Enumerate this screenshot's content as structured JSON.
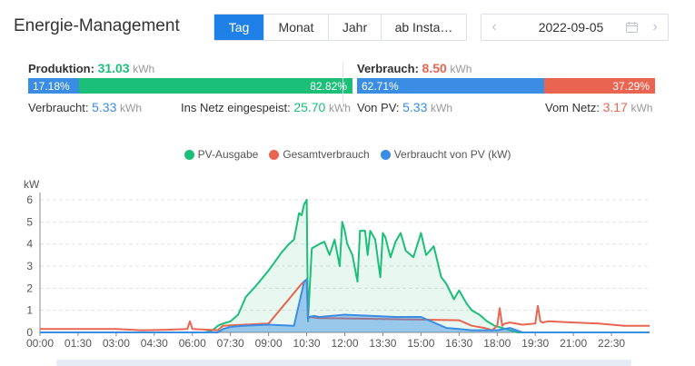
{
  "header": {
    "title": "Energie-Management",
    "tabs": [
      {
        "label": "Tag",
        "active": true
      },
      {
        "label": "Monat",
        "active": false
      },
      {
        "label": "Jahr",
        "active": false
      },
      {
        "label": "ab Insta…",
        "active": false
      }
    ],
    "date": "2022-09-05"
  },
  "production": {
    "label": "Produktion:",
    "value": "31.03",
    "unit": "kWh",
    "bar_left": "17.18%",
    "bar_right": "82.82%",
    "consumed_label": "Verbraucht:",
    "consumed_value": "5.33",
    "consumed_unit": "kWh",
    "grid_label": "Ins Netz eingespeist:",
    "grid_value": "25.70",
    "grid_unit": "kWh"
  },
  "consumption": {
    "label": "Verbrauch:",
    "value": "8.50",
    "unit": "kWh",
    "bar_left": "62.71%",
    "bar_right": "37.29%",
    "pv_label": "Von PV:",
    "pv_value": "5.33",
    "pv_unit": "kWh",
    "grid_label": "Vom Netz:",
    "grid_value": "3.17",
    "grid_unit": "kWh"
  },
  "colors": {
    "green": "#1cbf78",
    "red": "#ea6551",
    "blue": "#3a8de3"
  },
  "chart_data": {
    "type": "line",
    "ylabel": "kW",
    "ylim": [
      0,
      6
    ],
    "yticks": [
      "0",
      "1",
      "2",
      "3",
      "4",
      "5",
      "6"
    ],
    "xticks": [
      "00:00",
      "01:30",
      "03:00",
      "04:30",
      "06:00",
      "07:30",
      "09:00",
      "10:30",
      "12:00",
      "13:30",
      "15:00",
      "16:30",
      "18:00",
      "19:30",
      "21:00",
      "22:30"
    ],
    "legend_position": "top-center",
    "grid": true,
    "series": [
      {
        "name": "PV-Ausgabe",
        "color": "#1cbf78",
        "x": [
          0,
          6.5,
          6.8,
          7.0,
          7.2,
          7.5,
          7.8,
          8.1,
          8.5,
          9.0,
          9.5,
          9.8,
          10.0,
          10.2,
          10.3,
          10.4,
          10.5,
          10.55,
          10.7,
          11.0,
          11.2,
          11.4,
          11.6,
          11.8,
          11.9,
          12.0,
          12.1,
          12.3,
          12.5,
          12.6,
          12.8,
          12.9,
          13.0,
          13.2,
          13.4,
          13.5,
          13.6,
          13.8,
          14.0,
          14.2,
          14.4,
          14.5,
          14.7,
          15.0,
          15.2,
          15.5,
          15.8,
          16.0,
          16.3,
          16.5,
          16.8,
          17.0,
          17.3,
          17.6,
          17.9,
          18.2,
          18.5,
          18.8,
          19.0,
          24
        ],
        "y": [
          0,
          0,
          0.1,
          0.3,
          0.4,
          0.5,
          0.8,
          1.6,
          2.1,
          2.8,
          3.6,
          4.0,
          4.2,
          5.4,
          5.3,
          5.8,
          6.0,
          0.5,
          3.8,
          4.0,
          4.1,
          3.5,
          4.2,
          3.0,
          5.0,
          4.6,
          4.0,
          3.5,
          2.3,
          4.6,
          4.6,
          3.5,
          4.6,
          4.2,
          2.5,
          4.5,
          4.3,
          3.4,
          4.1,
          4.5,
          3.7,
          3.6,
          3.4,
          4.5,
          3.5,
          3.9,
          2.5,
          2.2,
          1.5,
          1.9,
          1.3,
          1.0,
          0.8,
          0.5,
          0.3,
          0.2,
          0.1,
          0,
          0,
          0
        ]
      },
      {
        "name": "Gesamtverbrauch",
        "color": "#ea6551",
        "x": [
          0,
          3.0,
          4.0,
          5.0,
          5.8,
          5.9,
          6.0,
          7.0,
          7.2,
          9.0,
          10.3,
          10.4,
          10.5,
          10.55,
          10.6,
          11.0,
          16.5,
          17.0,
          17.5,
          17.8,
          18.0,
          18.1,
          18.2,
          18.3,
          18.5,
          19.0,
          19.5,
          19.6,
          19.7,
          19.8,
          20.0,
          21.0,
          22.0,
          23.0,
          24
        ],
        "y": [
          0.15,
          0.15,
          0.1,
          0.12,
          0.15,
          0.5,
          0.15,
          0.1,
          0.3,
          0.4,
          2.2,
          2.3,
          2.4,
          0.6,
          0.7,
          0.65,
          0.55,
          0.3,
          0.2,
          0.1,
          0.3,
          1.1,
          0.3,
          0.4,
          0.45,
          0.35,
          0.4,
          1.2,
          0.5,
          0.45,
          0.5,
          0.45,
          0.4,
          0.3,
          0.3
        ]
      },
      {
        "name": "Verbraucht von PV (kW)",
        "color": "#3a8de3",
        "x": [
          0,
          7.0,
          7.2,
          7.5,
          8.0,
          9.0,
          10.0,
          10.3,
          10.4,
          10.5,
          10.55,
          10.6,
          10.8,
          11.0,
          12.0,
          13.0,
          14.0,
          15.0,
          16.0,
          16.5,
          17.0,
          18.0,
          18.5,
          19.0,
          24
        ],
        "y": [
          0,
          0,
          0.15,
          0.25,
          0.3,
          0.35,
          0.3,
          1.8,
          2.3,
          2.4,
          0.6,
          0.7,
          0.75,
          0.7,
          0.8,
          0.75,
          0.7,
          0.7,
          0.2,
          0.15,
          0.1,
          0.1,
          0.2,
          0,
          0
        ]
      }
    ]
  }
}
